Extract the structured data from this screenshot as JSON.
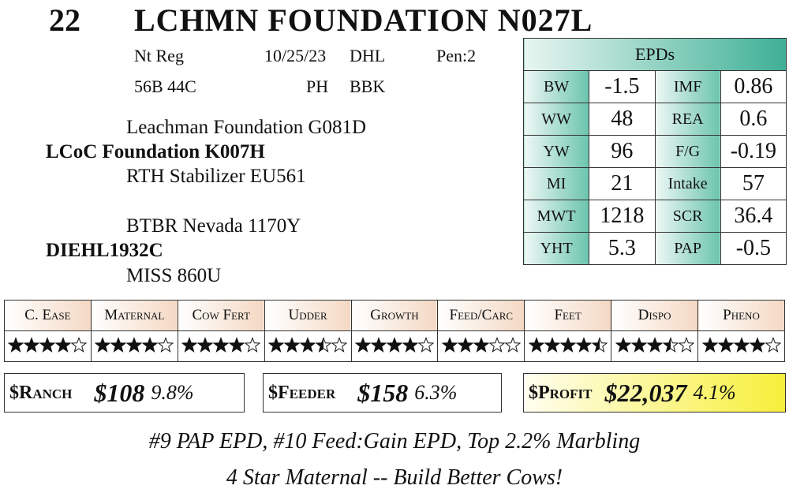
{
  "header": {
    "lot": "22",
    "name": "LCHMN FOUNDATION N027L"
  },
  "info": {
    "row1": [
      "Nt Reg",
      "10/25/23",
      "DHL",
      "Pen:2"
    ],
    "row2": [
      "56B 44C",
      "PH",
      "BBK"
    ]
  },
  "pedigree": {
    "sire_sire": "Leachman Foundation G081D",
    "sire": "LCoC Foundation K007H",
    "sire_dam": "RTH Stabilizer EU561",
    "dam_sire": "BTBR Nevada 1170Y",
    "dam": "DIEHL1932C",
    "dam_dam": "MISS 860U"
  },
  "epds": {
    "title": "EPDs",
    "rows": [
      [
        "BW",
        "-1.5",
        "IMF",
        "0.86"
      ],
      [
        "WW",
        "48",
        "REA",
        "0.6"
      ],
      [
        "YW",
        "96",
        "F/G",
        "-0.19"
      ],
      [
        "MI",
        "21",
        "Intake",
        "57"
      ],
      [
        "MWT",
        "1218",
        "SCR",
        "36.4"
      ],
      [
        "YHT",
        "5.3",
        "PAP",
        "-0.5"
      ]
    ]
  },
  "ratings": {
    "items": [
      {
        "label": "C. Ease",
        "stars": 4
      },
      {
        "label": "Maternal",
        "stars": 4
      },
      {
        "label": "Cow Fert",
        "stars": 4
      },
      {
        "label": "Udder",
        "stars": 3.5
      },
      {
        "label": "Growth",
        "stars": 4
      },
      {
        "label": "Feed/Carc",
        "stars": 3
      },
      {
        "label": "Feet",
        "stars": 4.5
      },
      {
        "label": "Dispo",
        "stars": 3.5
      },
      {
        "label": "Pheno",
        "stars": 4
      }
    ]
  },
  "indexes": [
    {
      "label": "$Ranch",
      "value": "$108",
      "percent": "9.8%"
    },
    {
      "label": "$Feeder",
      "value": "$158",
      "percent": "6.3%"
    },
    {
      "label": "$Profit",
      "value": "$22,037",
      "percent": "4.1%"
    }
  ],
  "footer": {
    "line1": "#9 PAP EPD, #10 Feed:Gain EPD, Top 2.2% Marbling",
    "line2": "4 Star Maternal -- Build Better Cows!"
  }
}
